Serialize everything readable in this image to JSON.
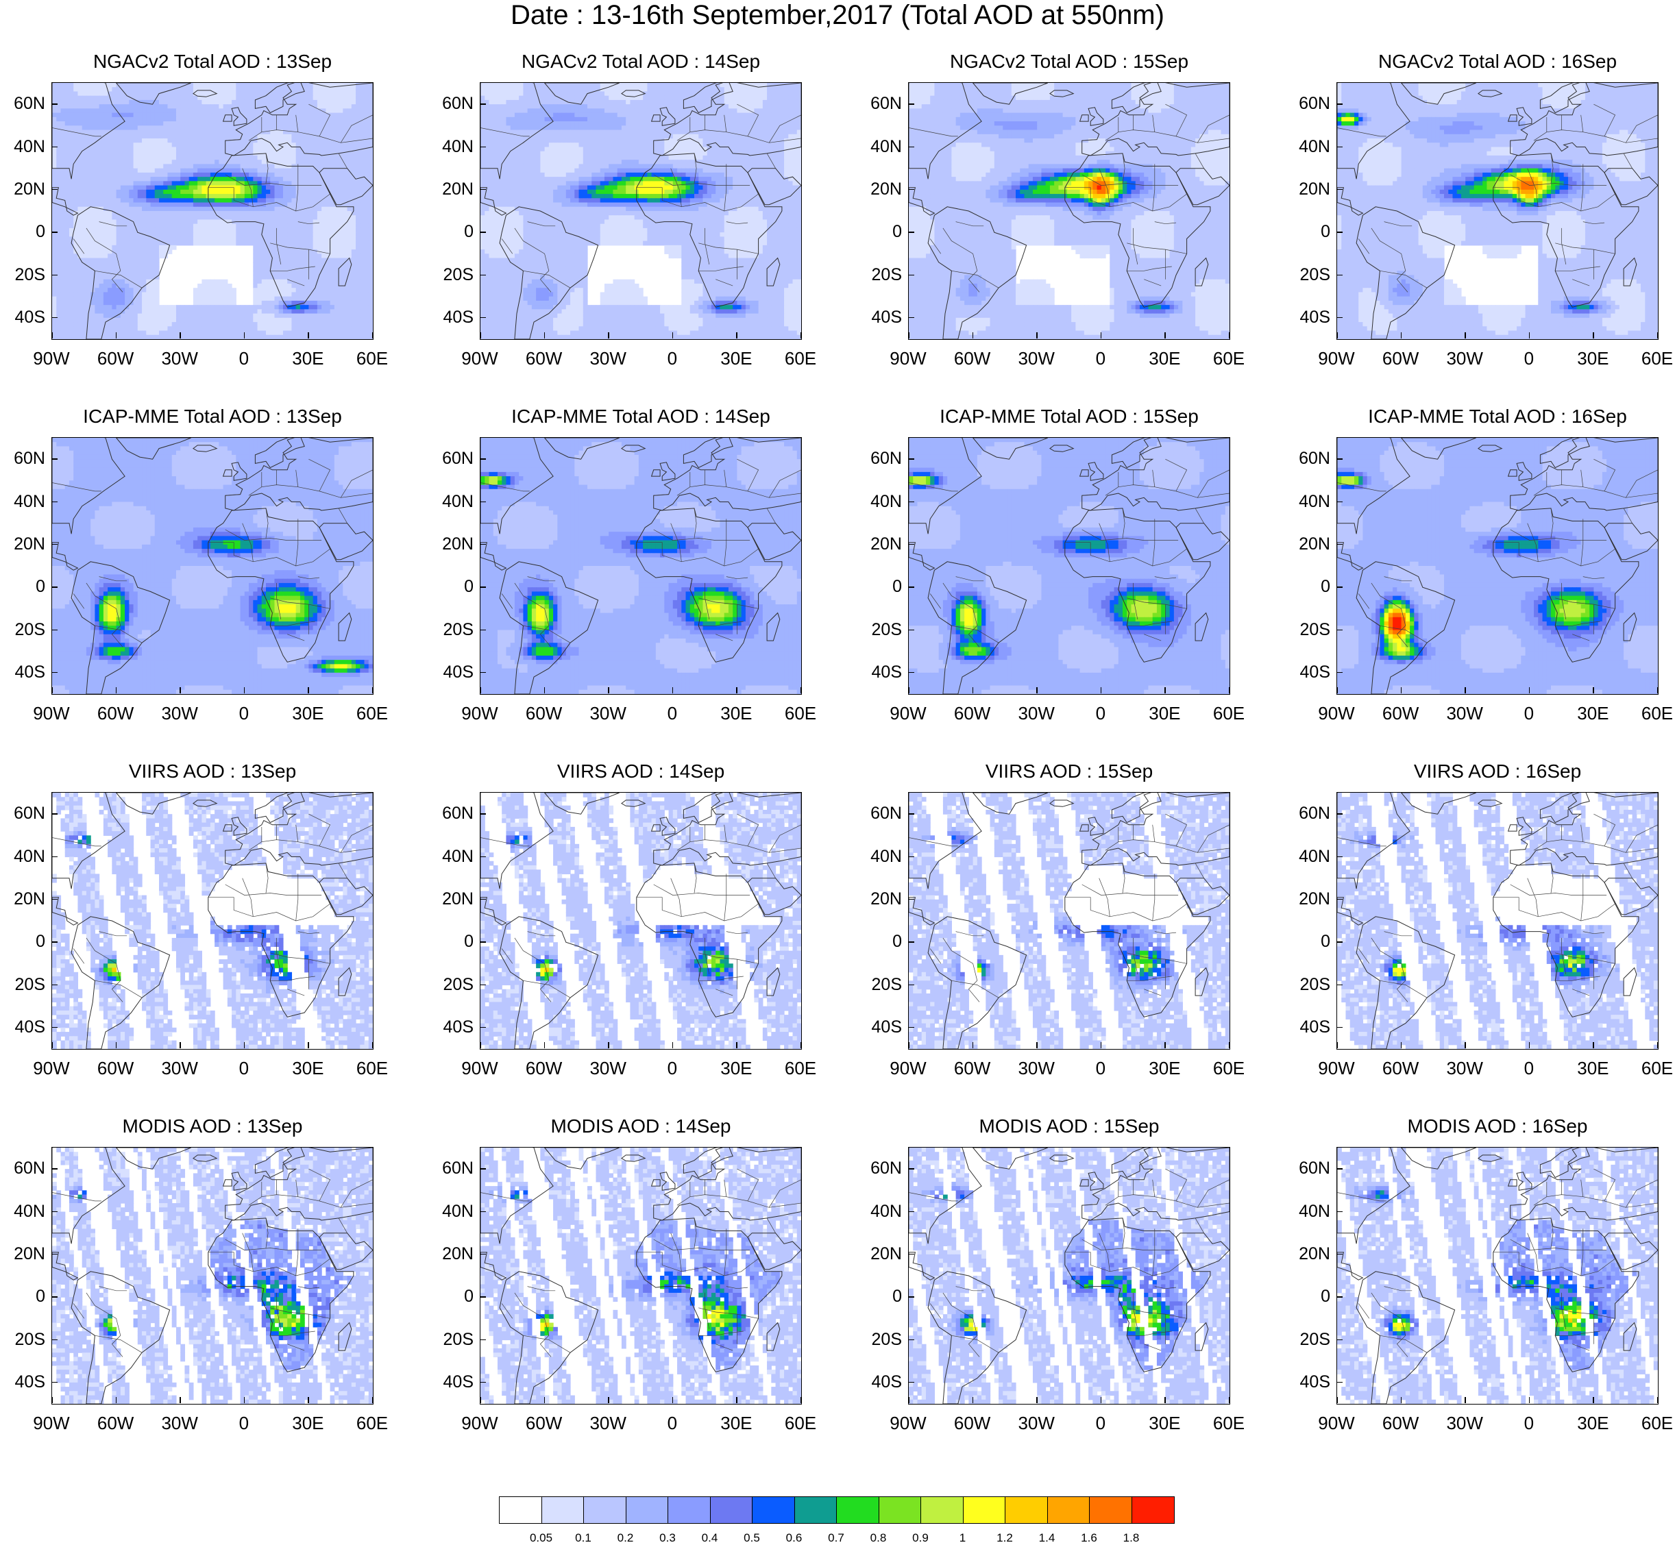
{
  "figure_title": "Date : 13-16th September,2017 (Total AOD at 550nm)",
  "panels": [
    {
      "title": "NGACv2 Total AOD : 13Sep",
      "model": "NGACv2",
      "day": 13
    },
    {
      "title": "NGACv2 Total AOD : 14Sep",
      "model": "NGACv2",
      "day": 14
    },
    {
      "title": "NGACv2 Total AOD : 15Sep",
      "model": "NGACv2",
      "day": 15
    },
    {
      "title": "NGACv2 Total AOD : 16Sep",
      "model": "NGACv2",
      "day": 16
    },
    {
      "title": "ICAP-MME Total AOD : 13Sep",
      "model": "ICAP-MME",
      "day": 13
    },
    {
      "title": "ICAP-MME Total AOD : 14Sep",
      "model": "ICAP-MME",
      "day": 14
    },
    {
      "title": "ICAP-MME Total AOD : 15Sep",
      "model": "ICAP-MME",
      "day": 15
    },
    {
      "title": "ICAP-MME Total AOD : 16Sep",
      "model": "ICAP-MME",
      "day": 16
    },
    {
      "title": "VIIRS AOD : 13Sep",
      "model": "VIIRS",
      "day": 13
    },
    {
      "title": "VIIRS AOD : 14Sep",
      "model": "VIIRS",
      "day": 14
    },
    {
      "title": "VIIRS AOD : 15Sep",
      "model": "VIIRS",
      "day": 15
    },
    {
      "title": "VIIRS AOD : 16Sep",
      "model": "VIIRS",
      "day": 16
    },
    {
      "title": "MODIS AOD : 13Sep",
      "model": "MODIS",
      "day": 13
    },
    {
      "title": "MODIS AOD : 14Sep",
      "model": "MODIS",
      "day": 14
    },
    {
      "title": "MODIS AOD : 15Sep",
      "model": "MODIS",
      "day": 15
    },
    {
      "title": "MODIS AOD : 16Sep",
      "model": "MODIS",
      "day": 16
    }
  ],
  "lat_labels": [
    "60N",
    "40N",
    "20N",
    "0",
    "20S",
    "40S"
  ],
  "lat_values": [
    60,
    40,
    20,
    0,
    -20,
    -40
  ],
  "lon_labels": [
    "90W",
    "60W",
    "30W",
    "0",
    "30E",
    "60E"
  ],
  "lon_values": [
    -90,
    -60,
    -30,
    0,
    30,
    60
  ],
  "map_extent": {
    "lon_min": -90,
    "lon_max": 60,
    "lat_min": -50,
    "lat_max": 70
  },
  "colorbar": {
    "colors": [
      "#ffffff",
      "#d8e0ff",
      "#bac6ff",
      "#a0b3ff",
      "#8a9cff",
      "#6d79f2",
      "#0a5cff",
      "#0f9d91",
      "#22dc20",
      "#7be322",
      "#c0f040",
      "#ffff1e",
      "#ffcd00",
      "#ffa500",
      "#ff7200",
      "#ff1e00"
    ],
    "labels": [
      "0.05",
      "0.1",
      "0.2",
      "0.3",
      "0.4",
      "0.5",
      "0.6",
      "0.7",
      "0.8",
      "0.9",
      "1",
      "1.2",
      "1.4",
      "1.6",
      "1.8"
    ]
  }
}
